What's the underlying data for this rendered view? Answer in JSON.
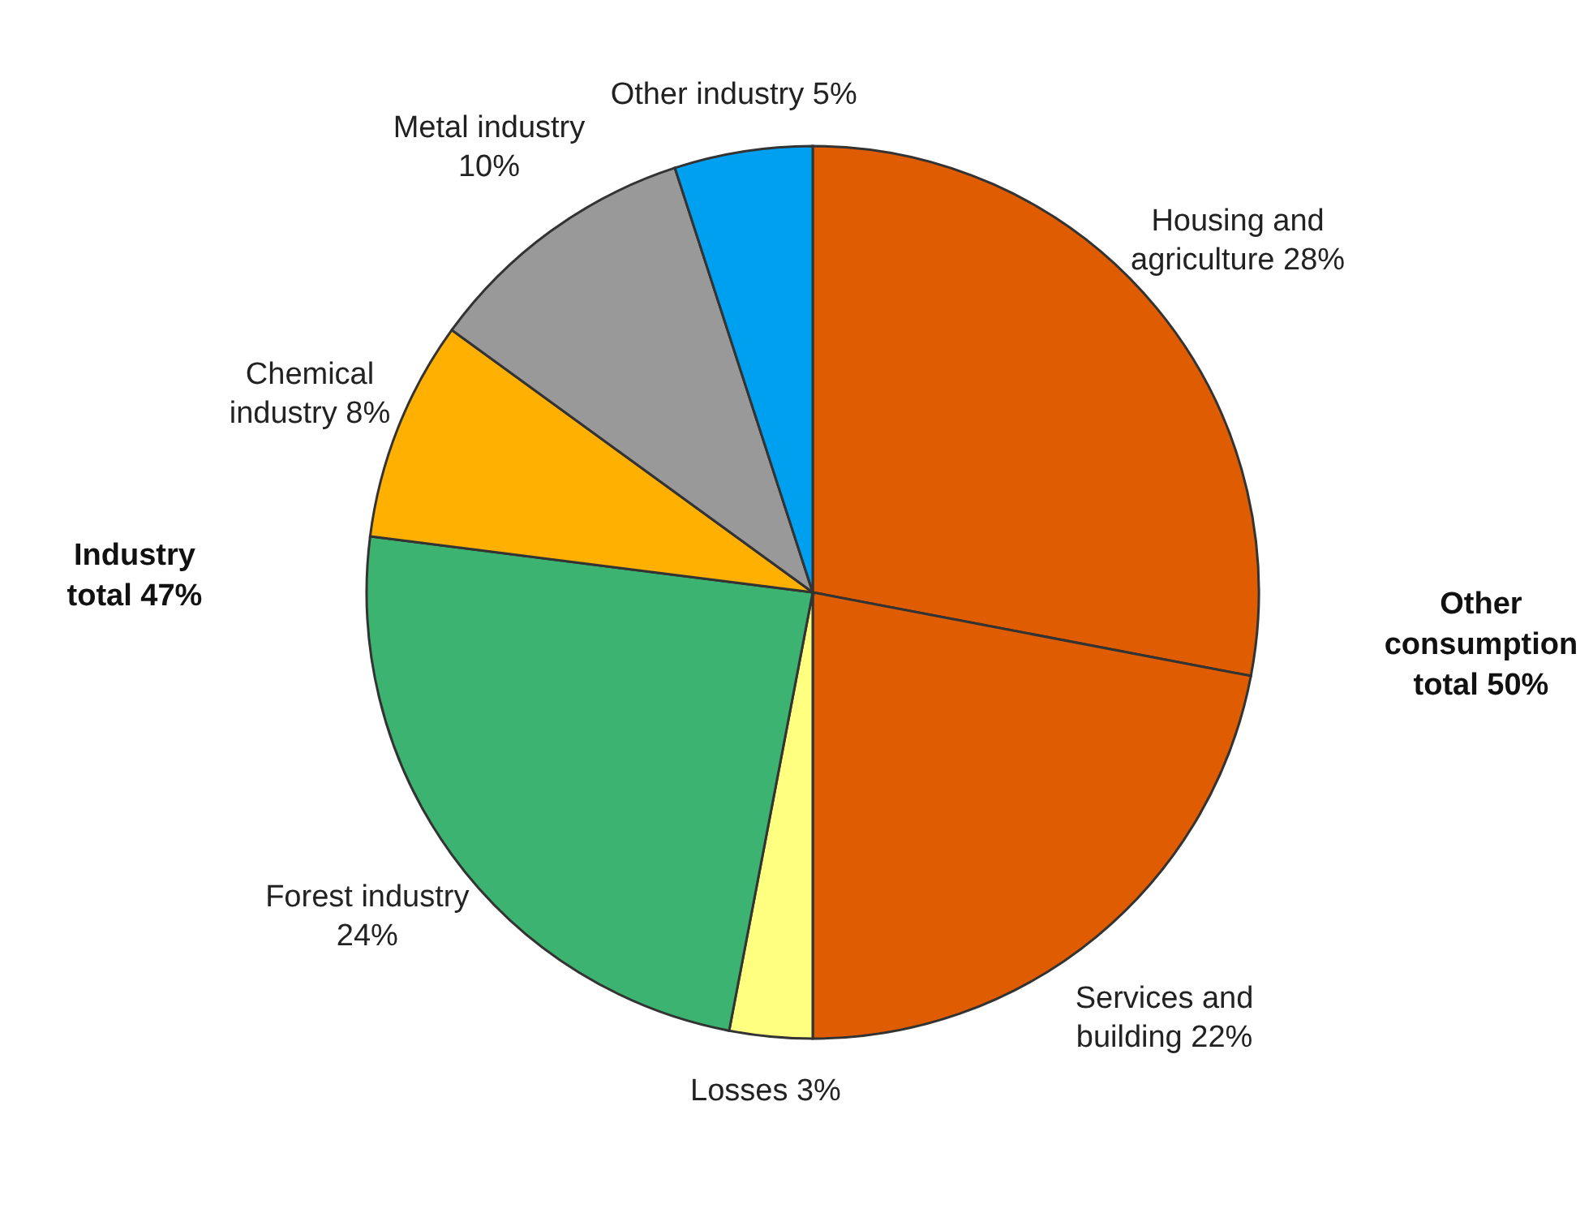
{
  "chart_data": {
    "type": "pie",
    "categories": [
      "Housing and agriculture",
      "Services and building",
      "Losses",
      "Forest industry",
      "Chemical industry",
      "Metal industry",
      "Other industry"
    ],
    "values": [
      28,
      22,
      3,
      24,
      8,
      10,
      5
    ],
    "value_labels": [
      "28%",
      "22%",
      "3%",
      "24%",
      "8%",
      "10%",
      "5%"
    ],
    "colors": [
      "#e05c00",
      "#e05c00",
      "#ffff80",
      "#3cb371",
      "#ffb000",
      "#999999",
      "#00a0f0"
    ],
    "annotations": [
      "Industry total 47%",
      "Other consumption total 50%"
    ]
  }
}
